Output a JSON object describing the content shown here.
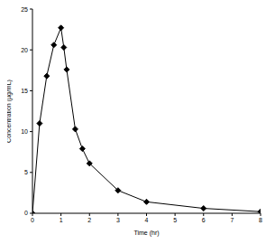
{
  "chart_data": {
    "type": "line",
    "x_label": "Time (hr)",
    "y_label": "Concentration (µg/mL)",
    "x": [
      0,
      0.25,
      0.5,
      0.75,
      1,
      1.1,
      1.2,
      1.5,
      1.75,
      2,
      3,
      4,
      6,
      8
    ],
    "values": [
      0,
      11,
      16.8,
      20.6,
      22.7,
      20.3,
      17.6,
      10.3,
      7.9,
      6.1,
      2.8,
      1.4,
      0.6,
      0.2
    ],
    "color": "#000000",
    "marker": "diamond",
    "xlim": [
      0,
      8
    ],
    "xticks": [
      0,
      1,
      2,
      3,
      4,
      5,
      6,
      7,
      8
    ],
    "ylim": [
      0,
      25
    ],
    "yticks": [
      0,
      5,
      10,
      15,
      20,
      25
    ],
    "grid": false
  }
}
